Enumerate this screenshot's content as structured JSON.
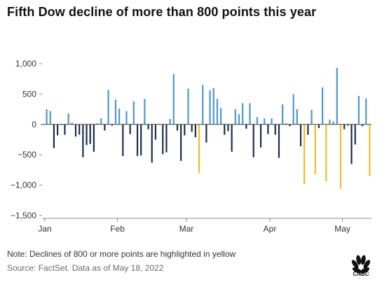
{
  "title": "Fifth Dow decline of more than 800 points this year",
  "note": "Note: Declines of 800 or more points are highlighted in yellow",
  "source": "Source: FactSet. Data as of May 18, 2022",
  "logo": {
    "icon": "cnbc-peacock-logo",
    "text": "CNBC"
  },
  "colors": {
    "gain": "#4d96cf",
    "decline": "#1b2c45",
    "big_decline": "#f2bb23",
    "axis": "#555555",
    "grid": "#dddddd"
  },
  "chart_data": {
    "type": "bar",
    "title": "Fifth Dow decline of more than 800 points this year",
    "xlabel": "",
    "ylabel": "",
    "ylim": [
      -1500,
      1000
    ],
    "yticks": [
      1000,
      500,
      0,
      -500,
      -1000,
      -1500
    ],
    "ytick_labels": [
      "1,000",
      "500",
      "0",
      "−500",
      "−1,000",
      "−1,500"
    ],
    "month_labels": [
      {
        "label": "Jan",
        "start_index": 0
      },
      {
        "label": "Feb",
        "start_index": 20
      },
      {
        "label": "Mar",
        "start_index": 39
      },
      {
        "label": "Apr",
        "start_index": 62
      },
      {
        "label": "May",
        "start_index": 82
      }
    ],
    "highlight_threshold": -800,
    "grid": false,
    "legend": "none",
    "values": [
      250,
      220,
      -390,
      -180,
      -10,
      -170,
      180,
      30,
      -200,
      -170,
      -540,
      -340,
      -320,
      -450,
      20,
      100,
      -100,
      570,
      -20,
      410,
      260,
      -520,
      220,
      -160,
      380,
      -520,
      -510,
      420,
      -80,
      -630,
      -250,
      10,
      -490,
      -460,
      90,
      830,
      -100,
      -600,
      -180,
      590,
      -120,
      -210,
      -800,
      650,
      -300,
      560,
      600,
      420,
      270,
      -170,
      -110,
      -450,
      250,
      170,
      350,
      -70,
      350,
      -540,
      120,
      -380,
      100,
      -160,
      100,
      -170,
      -550,
      330,
      20,
      -30,
      500,
      250,
      -360,
      -980,
      -170,
      240,
      -820,
      -60,
      610,
      -940,
      80,
      50,
      930,
      -1060,
      -80,
      -20,
      -650,
      -330,
      470,
      -30,
      430,
      -850
    ]
  }
}
